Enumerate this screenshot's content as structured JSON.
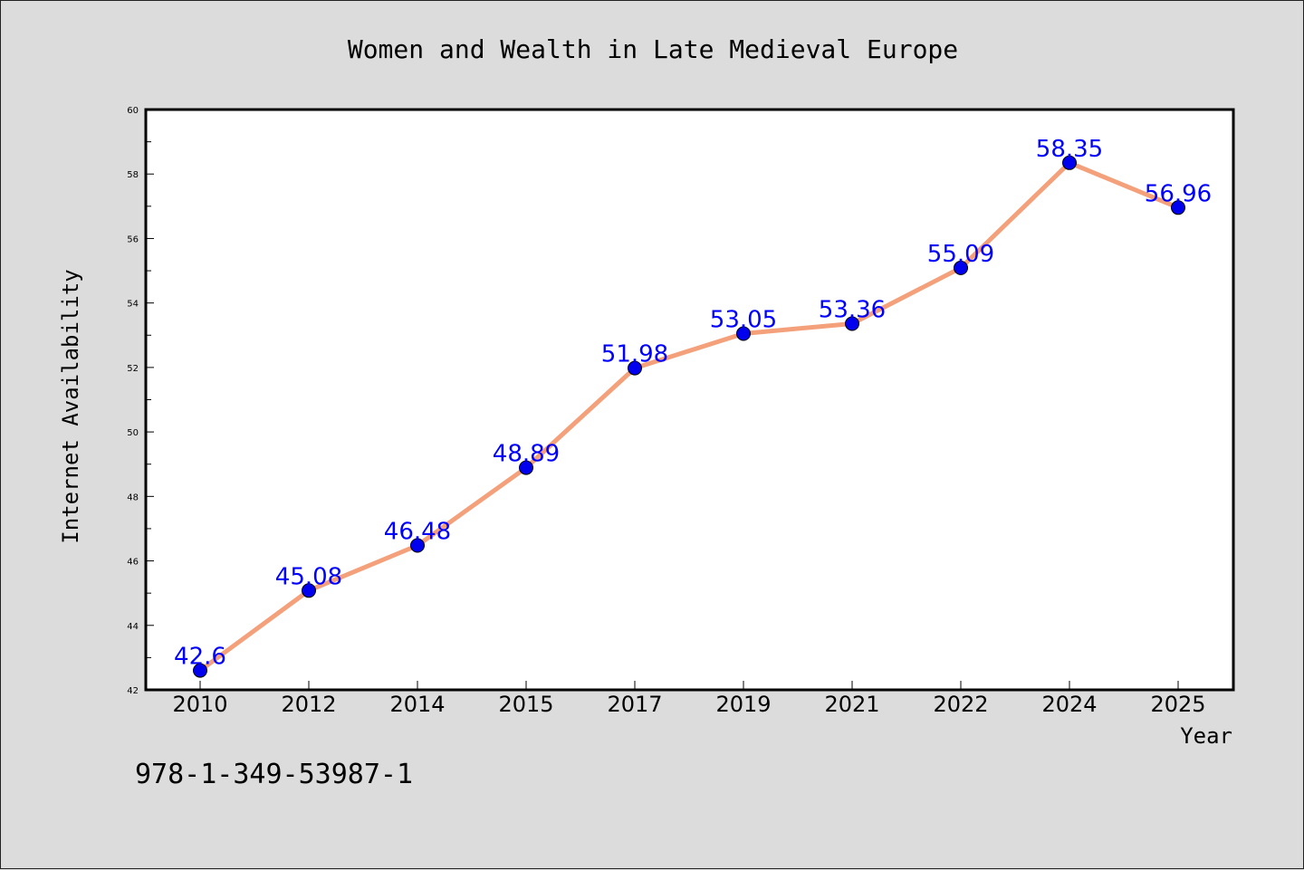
{
  "chart_data": {
    "type": "line",
    "title": "Women and Wealth in Late Medieval Europe",
    "xlabel": "Year",
    "ylabel": "Internet Availability",
    "categories": [
      "2010",
      "2012",
      "2014",
      "2015",
      "2017",
      "2019",
      "2021",
      "2022",
      "2024",
      "2025"
    ],
    "series": [
      {
        "values": [
          42.6,
          45.08,
          46.48,
          48.89,
          51.98,
          53.05,
          53.36,
          55.09,
          58.35,
          56.96
        ]
      }
    ],
    "data_labels": [
      "42.6",
      "45.08",
      "46.48",
      "48.89",
      "51.98",
      "53.05",
      "53.36",
      "55.09",
      "58.35",
      "56.96"
    ],
    "ylim": [
      42,
      60
    ],
    "yticks": [
      42,
      44,
      46,
      48,
      50,
      52,
      54,
      56,
      58,
      60
    ],
    "grid": false,
    "line_color": "#f4a07a",
    "marker_color": "#0000ee",
    "label_color": "#0000ff"
  },
  "footer": {
    "isbn": "978-1-349-53987-1"
  }
}
